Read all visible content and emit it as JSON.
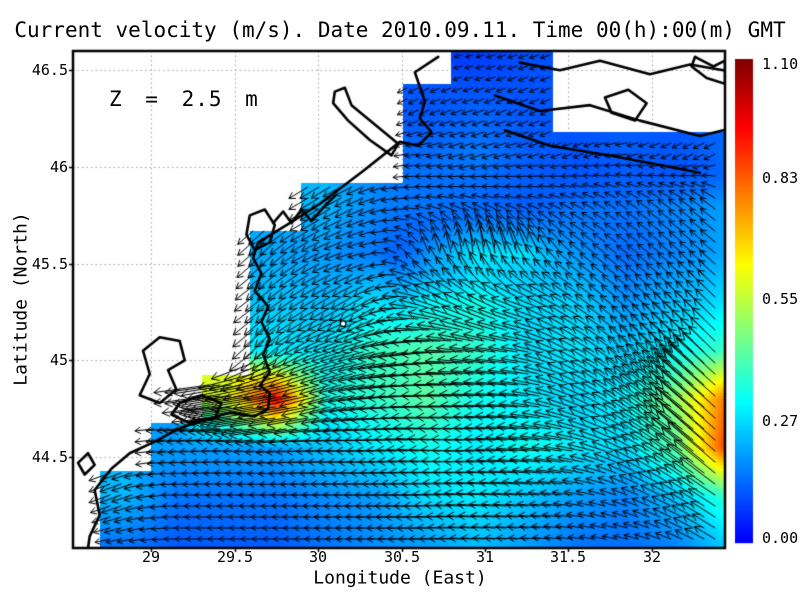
{
  "chart_data": {
    "type": "heatmap",
    "subtype": "vector_field_map",
    "title": "Current velocity (m/s). Date 2010.09.11. Time 00(h):00(m) GMT",
    "annotation": "Z = 2.5 m",
    "xlabel": "Longitude (East)",
    "ylabel": "Latitude (North)",
    "xlim": [
      28.53,
      32.44
    ],
    "ylim": [
      44.03,
      46.6
    ],
    "grid": true,
    "x_tick_values": [
      29,
      29.5,
      30,
      30.5,
      31,
      31.5,
      32
    ],
    "x_tick_labels": [
      "29",
      "29.5",
      "30",
      "30.5",
      "31",
      "31.5",
      "32"
    ],
    "y_tick_values": [
      46.5,
      46,
      45.5,
      45,
      44.5
    ],
    "y_tick_labels": [
      "46.5",
      "46",
      "45.5",
      "45",
      "44.5"
    ],
    "colormap": "jet",
    "colorbar": {
      "units": "m/s",
      "min": 0.0,
      "max": 1.1,
      "tick_values": [
        1.1,
        0.83,
        0.55,
        0.27,
        0.0
      ],
      "tick_labels": [
        "1.10",
        "0.83",
        "0.55",
        "0.27",
        "0.00"
      ]
    },
    "field": {
      "units": "m/s",
      "lon_start": 28.55,
      "lon_step": 0.3,
      "ncols": 14,
      "lat_start": 46.55,
      "lat_step": -0.25,
      "nrows": 11,
      "uv": [
        [
          null,
          null,
          null,
          null,
          null,
          null,
          null,
          null,
          [
            -0.08,
            -0.02
          ],
          [
            -0.1,
            -0.03
          ],
          null,
          null,
          null,
          null
        ],
        [
          null,
          null,
          null,
          null,
          null,
          null,
          null,
          [
            -0.1,
            -0.05
          ],
          [
            -0.12,
            -0.04
          ],
          [
            -0.1,
            -0.05
          ],
          null,
          null,
          null,
          null
        ],
        [
          null,
          null,
          null,
          null,
          null,
          null,
          null,
          [
            -0.14,
            -0.02
          ],
          [
            -0.15,
            -0.05
          ],
          [
            -0.12,
            -0.03
          ],
          [
            -0.1,
            -0.04
          ],
          [
            -0.12,
            -0.02
          ],
          [
            -0.1,
            -0.05
          ],
          [
            -0.12,
            -0.06
          ]
        ],
        [
          null,
          null,
          null,
          null,
          null,
          [
            -0.2,
            -0.12
          ],
          [
            -0.16,
            -0.06
          ],
          [
            -0.15,
            0.02
          ],
          [
            -0.13,
            0.05
          ],
          [
            -0.12,
            0.03
          ],
          [
            -0.13,
            0.06
          ],
          [
            -0.12,
            0.08
          ],
          [
            -0.14,
            0.1
          ],
          [
            -0.16,
            0.12
          ]
        ],
        [
          null,
          null,
          null,
          null,
          [
            -0.16,
            -0.14
          ],
          [
            -0.18,
            -0.08
          ],
          [
            -0.15,
            -0.03
          ],
          [
            -0.08,
            0.17
          ],
          [
            -0.03,
            0.3
          ],
          [
            -0.1,
            0.27
          ],
          [
            -0.15,
            0.12
          ],
          [
            -0.11,
            0.08
          ],
          [
            -0.13,
            0.11
          ],
          [
            -0.16,
            0.14
          ]
        ],
        [
          null,
          null,
          null,
          null,
          [
            -0.2,
            -0.15
          ],
          [
            -0.2,
            -0.12
          ],
          [
            -0.25,
            -0.15
          ],
          [
            -0.3,
            0.1
          ],
          [
            -0.3,
            0.18
          ],
          [
            -0.26,
            0.1
          ],
          [
            -0.22,
            0.15
          ],
          [
            -0.14,
            0.12
          ],
          [
            -0.18,
            0.16
          ],
          [
            -0.2,
            0.2
          ]
        ],
        [
          null,
          null,
          null,
          null,
          [
            -0.22,
            -0.2
          ],
          [
            -0.28,
            -0.1
          ],
          [
            -0.38,
            -0.1
          ],
          [
            -0.42,
            -0.05
          ],
          [
            -0.38,
            0.05
          ],
          [
            -0.28,
            0.05
          ],
          [
            -0.26,
            0.14
          ],
          [
            -0.2,
            0.16
          ],
          [
            -0.24,
            0.22
          ],
          [
            -0.28,
            0.28
          ]
        ],
        [
          null,
          null,
          null,
          [
            -0.58,
            -0.08
          ],
          [
            -0.95,
            -0.15
          ],
          [
            -0.33,
            -0.1
          ],
          [
            -0.38,
            -0.05
          ],
          [
            -0.43,
            0.0
          ],
          [
            -0.34,
            0.02
          ],
          [
            -0.3,
            0.03
          ],
          [
            -0.25,
            0.1
          ],
          [
            -0.25,
            0.18
          ],
          [
            -0.4,
            0.3
          ],
          [
            -0.6,
            0.55
          ]
        ],
        [
          null,
          null,
          [
            -0.2,
            -0.02
          ],
          [
            -0.2,
            0.0
          ],
          [
            -0.2,
            -0.02
          ],
          [
            -0.25,
            0.0
          ],
          [
            -0.3,
            0.0
          ],
          [
            -0.34,
            0.02
          ],
          [
            -0.3,
            0.0
          ],
          [
            -0.34,
            0.03
          ],
          [
            -0.3,
            0.05
          ],
          [
            -0.25,
            0.12
          ],
          [
            -0.36,
            0.25
          ],
          [
            -0.65,
            0.6
          ]
        ],
        [
          null,
          [
            -0.22,
            -0.08
          ],
          [
            -0.15,
            0.0
          ],
          [
            -0.15,
            0.0
          ],
          [
            -0.15,
            0.0
          ],
          [
            -0.18,
            0.0
          ],
          [
            -0.2,
            0.0
          ],
          [
            -0.28,
            0.0
          ],
          [
            -0.3,
            0.02
          ],
          [
            -0.25,
            0.02
          ],
          [
            -0.2,
            0.03
          ],
          [
            -0.16,
            0.06
          ],
          [
            -0.22,
            0.12
          ],
          [
            -0.32,
            0.22
          ]
        ],
        [
          null,
          [
            -0.15,
            -0.03
          ],
          [
            -0.12,
            0.0
          ],
          [
            -0.12,
            0.0
          ],
          [
            -0.12,
            0.0
          ],
          [
            -0.15,
            0.0
          ],
          [
            -0.18,
            0.0
          ],
          [
            -0.2,
            0.0
          ],
          [
            -0.24,
            0.01
          ],
          [
            -0.2,
            0.01
          ],
          [
            -0.15,
            0.02
          ],
          [
            -0.14,
            0.03
          ],
          [
            -0.16,
            0.06
          ],
          [
            -0.22,
            0.14
          ]
        ]
      ]
    },
    "marker": {
      "lon": 30.15,
      "lat": 45.19
    },
    "coastlines": {
      "open": [
        [
          [
            30.72,
            46.57
          ],
          [
            30.58,
            46.49
          ],
          [
            30.64,
            46.34
          ],
          [
            30.61,
            46.25
          ],
          [
            30.68,
            46.18
          ],
          [
            30.6,
            46.11
          ],
          [
            30.49,
            46.13
          ],
          [
            30.27,
            45.98
          ],
          [
            30.01,
            45.81
          ],
          [
            29.83,
            45.71
          ],
          [
            29.64,
            45.61
          ],
          [
            29.61,
            45.53
          ],
          [
            29.66,
            45.45
          ],
          [
            29.62,
            45.36
          ],
          [
            29.7,
            45.28
          ],
          [
            29.66,
            45.2
          ],
          [
            29.71,
            45.11
          ],
          [
            29.67,
            45.03
          ],
          [
            29.71,
            44.94
          ],
          [
            29.65,
            44.87
          ],
          [
            29.71,
            44.83
          ],
          [
            29.7,
            44.75
          ],
          [
            29.62,
            44.71
          ],
          [
            29.47,
            44.73
          ],
          [
            29.32,
            44.69
          ],
          [
            29.17,
            44.65
          ],
          [
            29.02,
            44.58
          ],
          [
            28.87,
            44.52
          ],
          [
            28.76,
            44.44
          ],
          [
            28.66,
            44.33
          ],
          [
            28.69,
            44.2
          ],
          [
            28.63,
            44.09
          ],
          [
            28.62,
            44.03
          ]
        ],
        [
          [
            29.73,
            45.71
          ],
          [
            29.79,
            45.77
          ],
          [
            29.84,
            45.71
          ],
          [
            29.9,
            45.78
          ],
          [
            29.96,
            45.72
          ],
          [
            30.03,
            45.79
          ],
          [
            30.1,
            45.85
          ]
        ],
        [
          [
            31.21,
            46.54
          ],
          [
            31.45,
            46.5
          ],
          [
            31.69,
            46.55
          ],
          [
            31.99,
            46.48
          ],
          [
            32.23,
            46.53
          ],
          [
            32.43,
            46.5
          ]
        ],
        [
          [
            31.06,
            46.37
          ],
          [
            31.33,
            46.29
          ],
          [
            31.63,
            46.32
          ],
          [
            31.93,
            46.24
          ],
          [
            32.29,
            46.16
          ],
          [
            32.43,
            46.19
          ]
        ],
        [
          [
            31.12,
            46.19
          ],
          [
            31.39,
            46.11
          ],
          [
            31.75,
            46.06
          ],
          [
            32.05,
            46.01
          ],
          [
            32.29,
            45.97
          ]
        ]
      ],
      "closed": [
        [
          [
            30.1,
            46.39
          ],
          [
            30.16,
            46.41
          ],
          [
            30.2,
            46.32
          ],
          [
            30.34,
            46.22
          ],
          [
            30.48,
            46.12
          ],
          [
            30.44,
            46.06
          ],
          [
            30.31,
            46.14
          ],
          [
            30.18,
            46.24
          ],
          [
            30.09,
            46.33
          ]
        ],
        [
          [
            29.59,
            45.75
          ],
          [
            29.68,
            45.78
          ],
          [
            29.74,
            45.7
          ],
          [
            29.71,
            45.61
          ],
          [
            29.62,
            45.57
          ],
          [
            29.57,
            45.65
          ]
        ],
        [
          [
            31.72,
            46.36
          ],
          [
            31.86,
            46.4
          ],
          [
            31.97,
            46.33
          ],
          [
            31.9,
            46.24
          ],
          [
            31.76,
            46.28
          ]
        ],
        [
          [
            32.26,
            46.57
          ],
          [
            32.37,
            46.52
          ],
          [
            32.44,
            46.55
          ],
          [
            32.44,
            46.43
          ],
          [
            32.33,
            46.46
          ],
          [
            32.24,
            46.52
          ]
        ],
        [
          [
            28.95,
            45.05
          ],
          [
            29.05,
            45.12
          ],
          [
            29.17,
            45.1
          ],
          [
            29.2,
            45.0
          ],
          [
            29.1,
            44.95
          ],
          [
            29.15,
            44.85
          ],
          [
            29.05,
            44.78
          ],
          [
            28.93,
            44.82
          ],
          [
            28.99,
            44.93
          ]
        ],
        [
          [
            29.17,
            44.78
          ],
          [
            29.3,
            44.82
          ],
          [
            29.42,
            44.78
          ],
          [
            29.38,
            44.7
          ],
          [
            29.22,
            44.68
          ],
          [
            29.12,
            44.72
          ]
        ],
        [
          [
            28.56,
            44.47
          ],
          [
            28.62,
            44.52
          ],
          [
            28.66,
            44.46
          ],
          [
            28.6,
            44.41
          ]
        ]
      ]
    }
  },
  "colors": {
    "background": "#ffffff",
    "coastline": "#000000",
    "gridline": "#a0a0a0",
    "arrow": "#000000",
    "frame": "#000000"
  }
}
